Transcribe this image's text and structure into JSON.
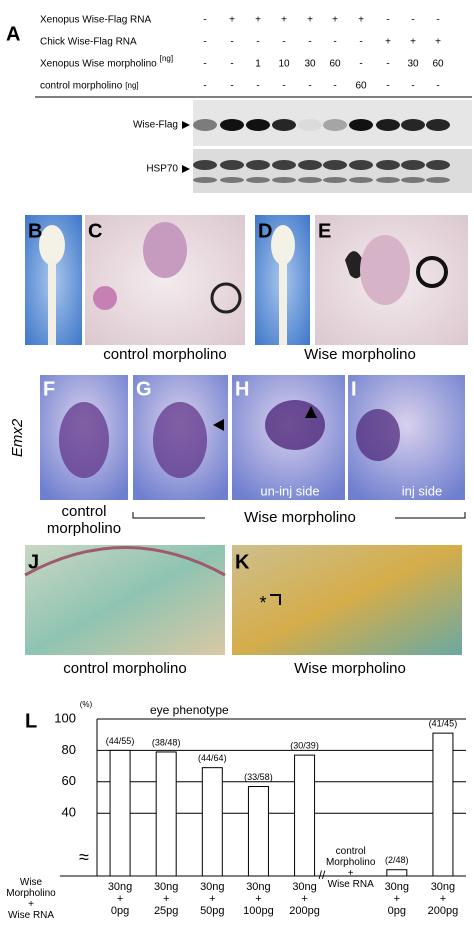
{
  "panel_a": {
    "label": "A",
    "rows": [
      {
        "name": "Xenopus Wise-Flag RNA",
        "cells": [
          "-",
          "+",
          "+",
          "+",
          "+",
          "+",
          "+",
          "-",
          "-",
          "-"
        ]
      },
      {
        "name": "Chick Wise-Flag RNA",
        "cells": [
          "-",
          "-",
          "-",
          "-",
          "-",
          "-",
          "-",
          "+",
          "+",
          "+"
        ]
      },
      {
        "name": "Xenopus Wise morpholino",
        "unit": "[ng]",
        "cells": [
          "-",
          "-",
          "1",
          "10",
          "30",
          "60",
          "-",
          "-",
          "30",
          "60"
        ]
      },
      {
        "name": "control morpholino",
        "unit": "[ng]",
        "cells": [
          "-",
          "-",
          "-",
          "-",
          "-",
          "-",
          "60",
          "-",
          "-",
          "-"
        ]
      }
    ],
    "blots": [
      "Wise-Flag",
      "HSP70"
    ]
  },
  "panels_bcde": {
    "labels": [
      "B",
      "C",
      "D",
      "E"
    ],
    "captions": [
      "control morpholino",
      "Wise morpholino"
    ]
  },
  "panels_fghi": {
    "labels": [
      "F",
      "G",
      "H",
      "I"
    ],
    "gene": "Emx2",
    "captions": [
      "control\nmorpholino",
      "Wise morpholino"
    ],
    "sides": [
      "un-inj side",
      "inj side"
    ]
  },
  "panels_jk": {
    "labels": [
      "J",
      "K"
    ],
    "captions": [
      "control morpholino",
      "Wise morpholino"
    ],
    "marker": "*"
  },
  "chart_data": {
    "type": "bar",
    "panel_label": "L",
    "title": "eye phenotype",
    "y_label": "(%)",
    "categories": [
      "30ng\n+\n0pg",
      "30ng\n+\n25pg",
      "30ng\n+\n50pg",
      "30ng\n+\n100pg",
      "30ng\n+\n200pg",
      null,
      "30ng\n+\n0pg",
      "30ng\n+\n200pg"
    ],
    "values": [
      80,
      79,
      69,
      57,
      77,
      null,
      4,
      91
    ],
    "value_labels": [
      "(44/55)",
      "(38/48)",
      "(44/64)",
      "(33/58)",
      "(30/39)",
      null,
      "(2/48)",
      "(41/45)"
    ],
    "groups": [
      "Wise\nMorpholino\n+\nWise RNA",
      "control\nMorpholino\n+\nWise RNA"
    ],
    "axis_break": "≈",
    "x_break": "//",
    "color": "#ffffff",
    "ylim": [
      0,
      100
    ],
    "yticks": [
      40,
      60,
      80,
      100
    ],
    "grid": true
  }
}
